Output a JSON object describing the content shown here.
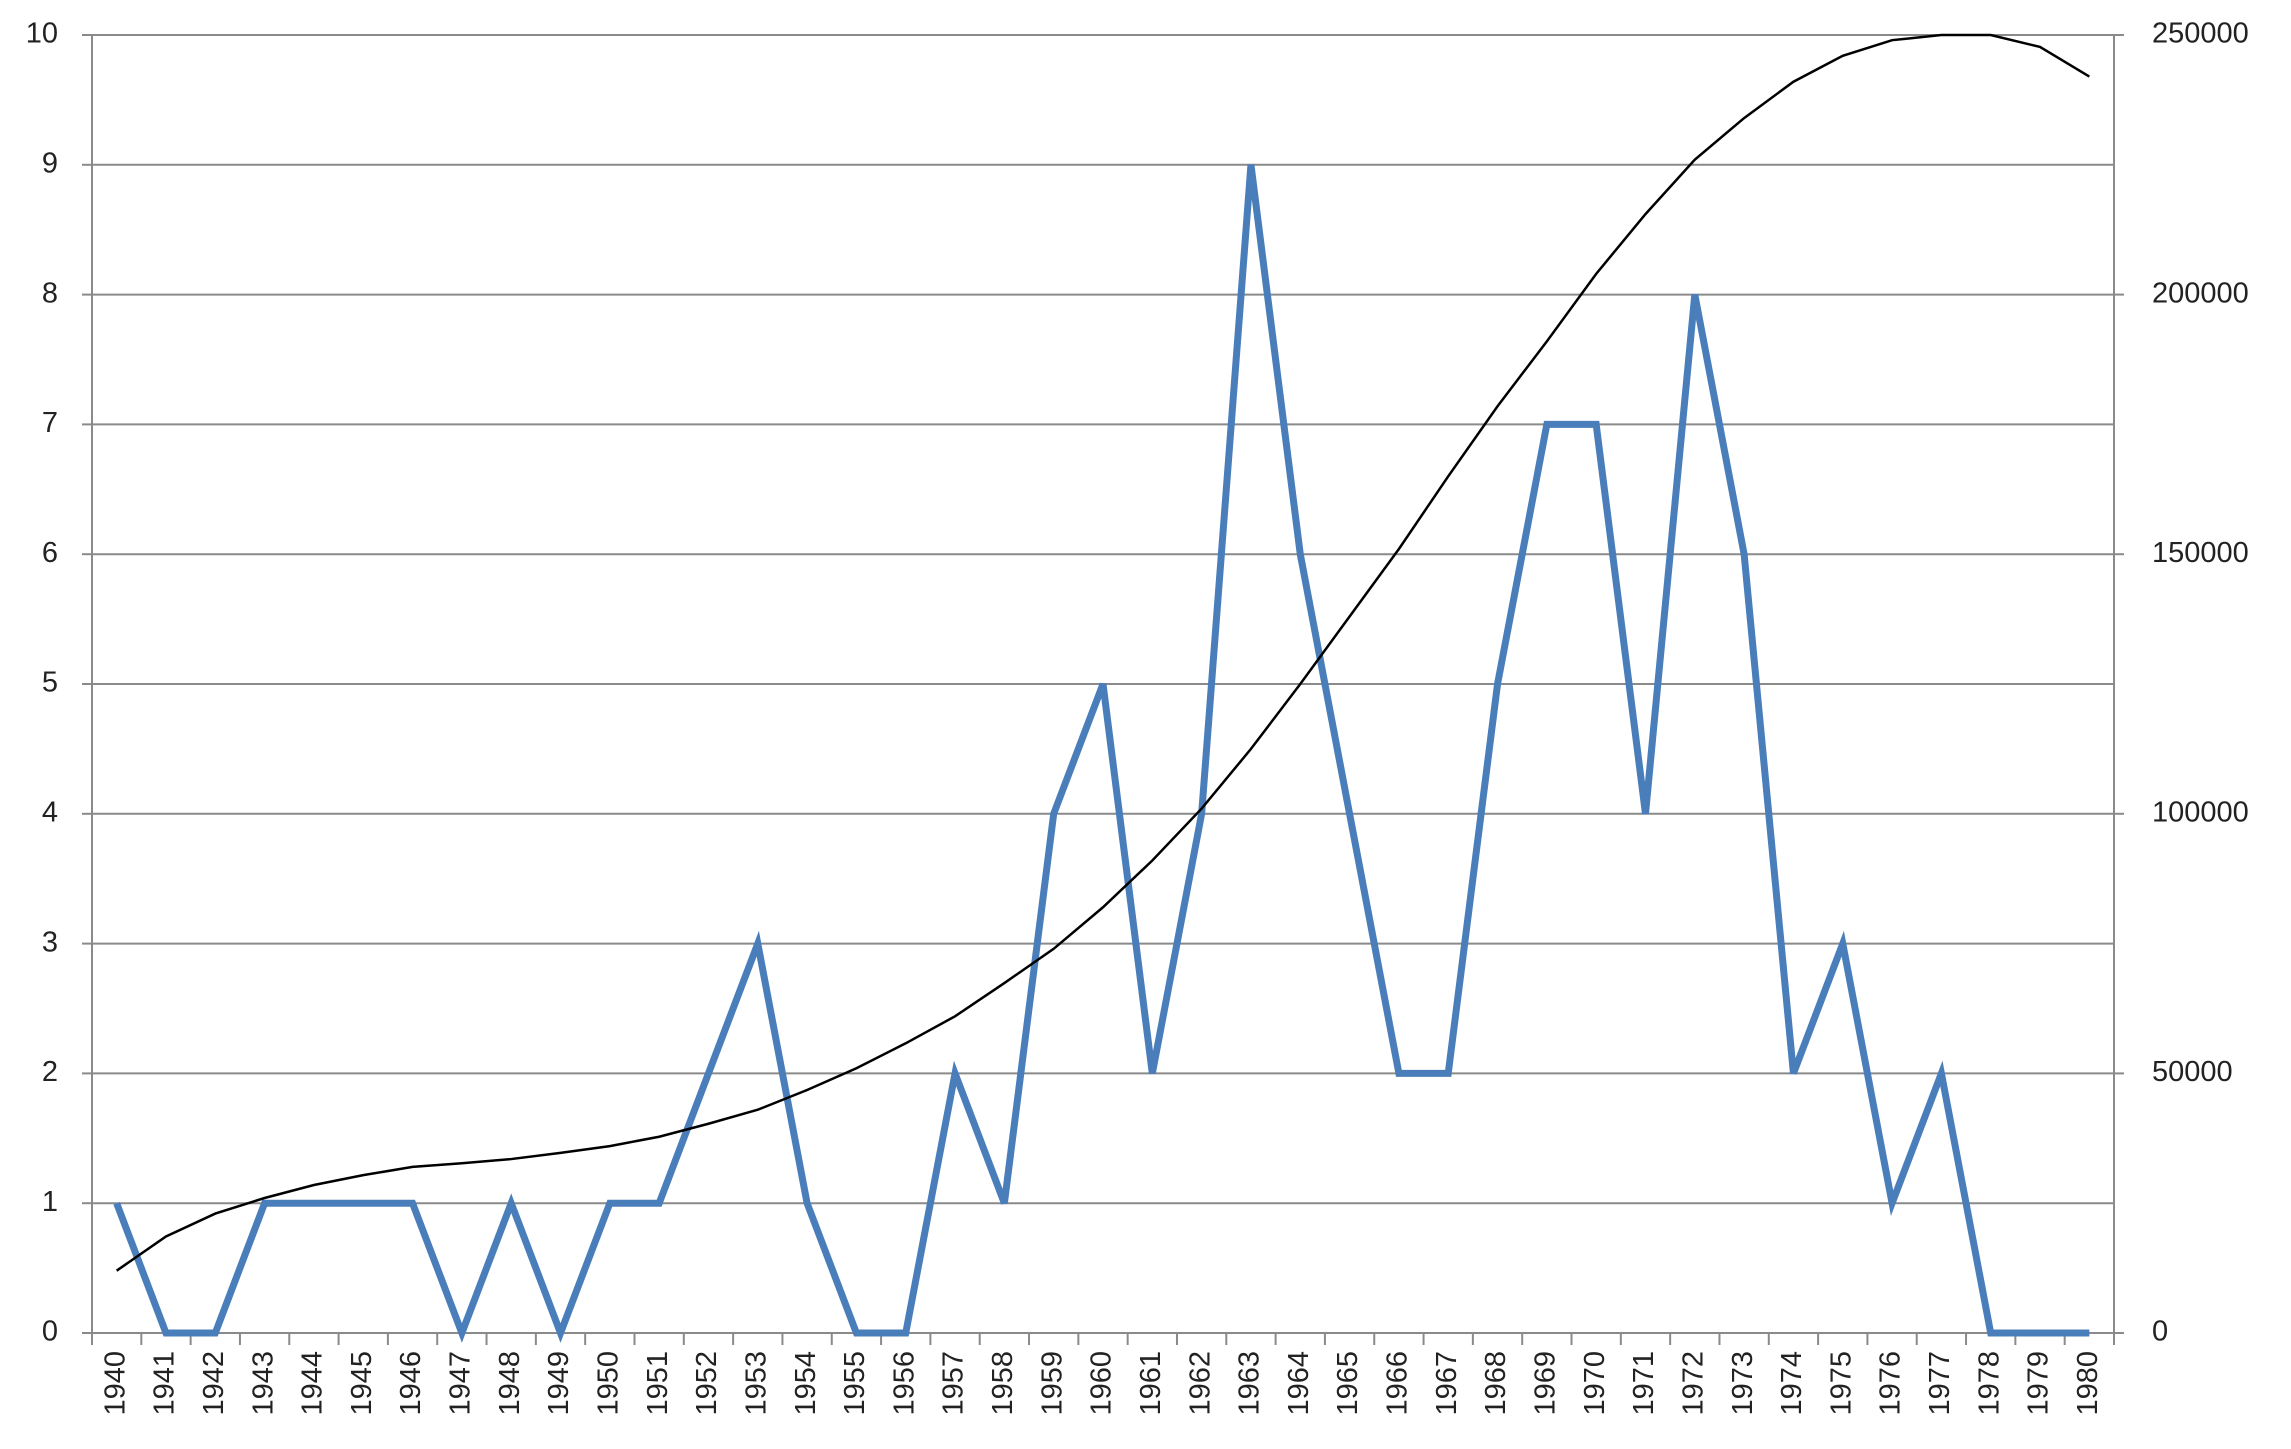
{
  "chart_data": {
    "type": "line",
    "categories": [
      "1940",
      "1941",
      "1942",
      "1943",
      "1944",
      "1945",
      "1946",
      "1947",
      "1948",
      "1949",
      "1950",
      "1951",
      "1952",
      "1953",
      "1954",
      "1955",
      "1956",
      "1957",
      "1958",
      "1959",
      "1960",
      "1961",
      "1962",
      "1963",
      "1964",
      "1965",
      "1966",
      "1967",
      "1968",
      "1969",
      "1970",
      "1971",
      "1972",
      "1973",
      "1974",
      "1975",
      "1976",
      "1977",
      "1978",
      "1979",
      "1980"
    ],
    "series": [
      {
        "color": "#4a7ebb",
        "values": [
          1,
          0,
          0,
          1,
          1,
          1,
          1,
          0,
          1,
          0,
          1,
          1,
          2,
          3,
          1,
          0,
          0,
          2,
          1,
          4,
          5,
          2,
          4,
          9,
          6,
          4,
          2,
          2,
          5,
          7,
          7,
          4,
          8,
          6,
          2,
          3,
          1,
          2,
          0,
          0,
          0
        ]
      },
      {
        "color": "#000000",
        "axis": "y2",
        "values": [
          12000,
          18600,
          23000,
          26000,
          28500,
          30400,
          32000,
          32700,
          33500,
          34700,
          36000,
          37800,
          40300,
          43000,
          46800,
          51000,
          55800,
          61000,
          67400,
          74000,
          82000,
          91000,
          101000,
          112500,
          125000,
          138000,
          151000,
          165000,
          178500,
          191000,
          204000,
          215500,
          226000,
          234000,
          241000,
          246000,
          249000,
          250000,
          250000,
          247700,
          242000
        ]
      }
    ],
    "ylim": [
      0,
      10
    ],
    "yticks": [
      0,
      1,
      2,
      3,
      4,
      5,
      6,
      7,
      8,
      9,
      10
    ],
    "y2lim": [
      0,
      250000
    ],
    "y2ticks": [
      0,
      50000,
      100000,
      150000,
      200000,
      250000
    ],
    "grid": true
  }
}
